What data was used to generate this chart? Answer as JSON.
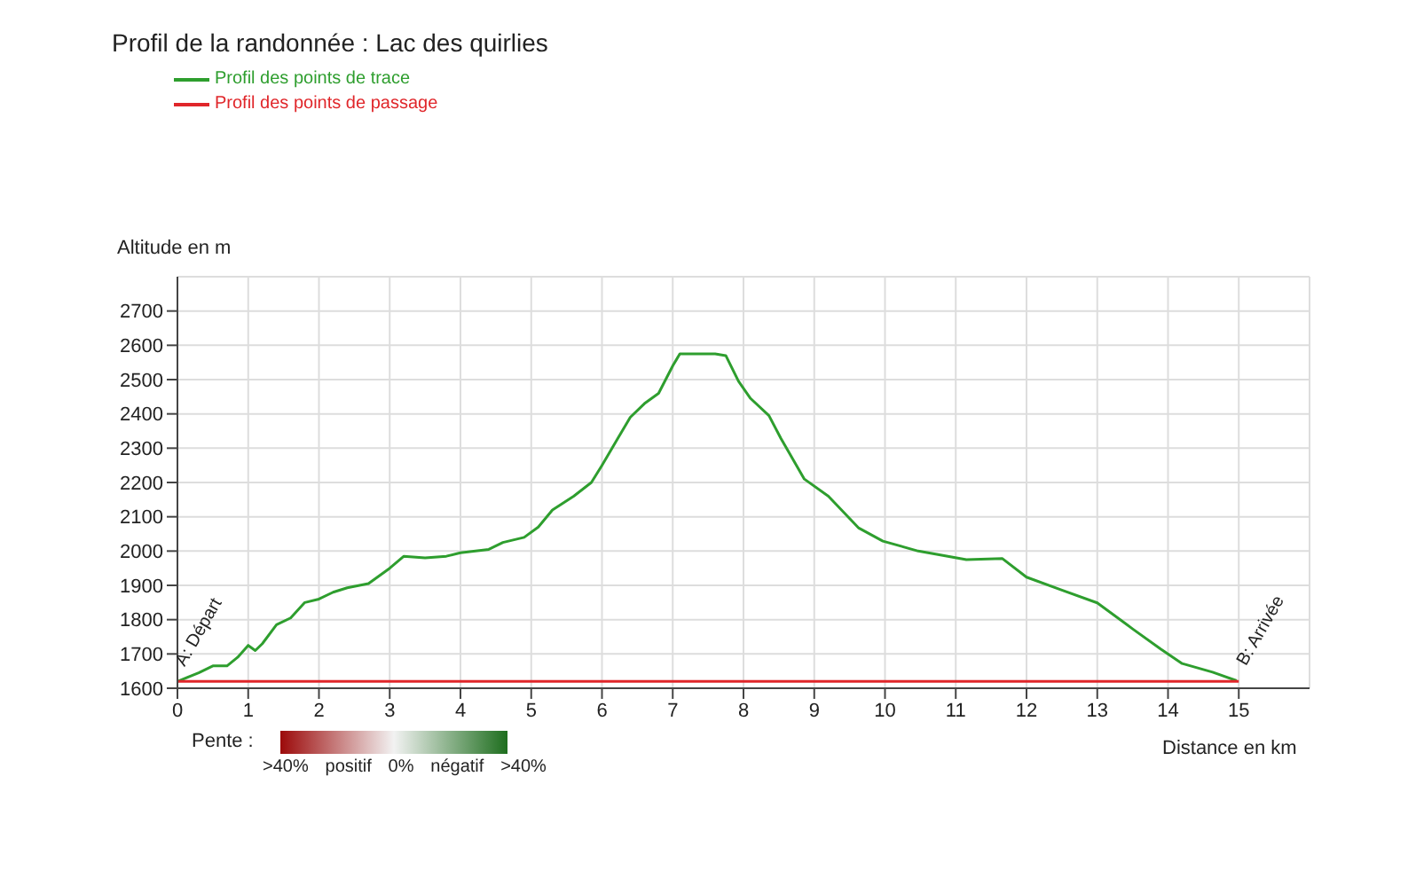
{
  "chart_data": {
    "type": "line",
    "title": "Profil de la randonnée : Lac des quirlies",
    "xlabel": "Distance en km",
    "ylabel": "Altitude en m",
    "series": [
      {
        "name": "Profil des points de trace",
        "color": "#2e9e2e",
        "x": [
          0,
          0.3,
          0.5,
          0.7,
          0.85,
          1.0,
          1.1,
          1.2,
          1.4,
          1.6,
          1.8,
          2.0,
          2.2,
          2.4,
          2.7,
          3.0,
          3.2,
          3.5,
          3.8,
          4.0,
          4.4,
          4.6,
          4.9,
          5.1,
          5.3,
          5.6,
          5.85,
          6.0,
          6.2,
          6.4,
          6.6,
          6.8,
          7.0,
          7.1,
          7.3,
          7.6,
          7.75,
          7.93,
          8.1,
          8.36,
          8.53,
          8.86,
          9.2,
          9.63,
          9.97,
          10.47,
          11.15,
          11.66,
          12.0,
          12.5,
          13.0,
          13.5,
          13.9,
          14.2,
          14.63,
          14.97
        ],
        "values": [
          1620,
          1645,
          1665,
          1665,
          1690,
          1725,
          1710,
          1730,
          1785,
          1805,
          1850,
          1860,
          1880,
          1893,
          1905,
          1950,
          1985,
          1980,
          1985,
          1995,
          2005,
          2025,
          2040,
          2070,
          2120,
          2160,
          2200,
          2250,
          2320,
          2390,
          2430,
          2460,
          2540,
          2575,
          2575,
          2575,
          2570,
          2495,
          2445,
          2395,
          2328,
          2210,
          2160,
          2067,
          2029,
          2000,
          1975,
          1978,
          1924,
          1886,
          1849,
          1773,
          1714,
          1672,
          1647,
          1622
        ]
      },
      {
        "name": "Profil des points de passage",
        "color": "#e0262a",
        "x": [
          0,
          15
        ],
        "values": [
          1620,
          1620
        ]
      }
    ],
    "xlim": [
      0,
      16
    ],
    "xticks": [
      0,
      1,
      2,
      3,
      4,
      5,
      6,
      7,
      8,
      9,
      10,
      11,
      12,
      13,
      14,
      15
    ],
    "ylim": [
      1600,
      2800
    ],
    "yticks": [
      1600,
      1700,
      1800,
      1900,
      2000,
      2100,
      2200,
      2300,
      2400,
      2500,
      2600,
      2700
    ],
    "grid": true,
    "legend": "top left",
    "marker": "none",
    "annotations": [
      {
        "text": "A: Départ",
        "x": 0,
        "y": 1620
      },
      {
        "text": "B: Arrivée",
        "x": 15,
        "y": 1622
      },
      "Pente :",
      ">40%",
      "positif",
      "0%",
      "négatif",
      ">40%"
    ]
  }
}
